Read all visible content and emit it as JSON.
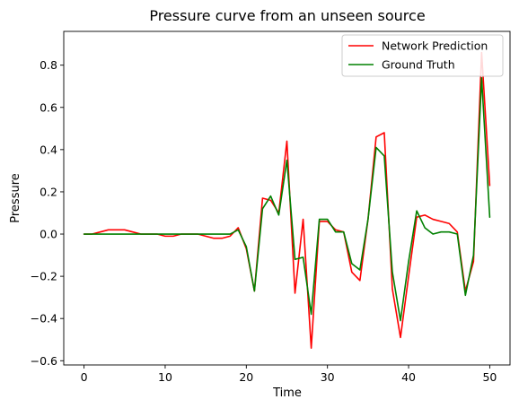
{
  "chart_data": {
    "type": "line",
    "title": "Pressure curve from an unseen source",
    "xlabel": "Time",
    "ylabel": "Pressure",
    "xlim": [
      -2.5,
      52.5
    ],
    "ylim": [
      -0.62,
      0.96
    ],
    "xticks": [
      0,
      10,
      20,
      30,
      40,
      50
    ],
    "yticks": [
      -0.6,
      -0.4,
      -0.2,
      0.0,
      0.2,
      0.4,
      0.6,
      0.8
    ],
    "ytick_labels": [
      "−0.6",
      "−0.4",
      "−0.2",
      "0.0",
      "0.2",
      "0.4",
      "0.6",
      "0.8"
    ],
    "grid": false,
    "legend_position": "top-right",
    "x": [
      0,
      1,
      2,
      3,
      4,
      5,
      6,
      7,
      8,
      9,
      10,
      11,
      12,
      13,
      14,
      15,
      16,
      17,
      18,
      19,
      20,
      21,
      22,
      23,
      24,
      25,
      26,
      27,
      28,
      29,
      30,
      31,
      32,
      33,
      34,
      35,
      36,
      37,
      38,
      39,
      40,
      41,
      42,
      43,
      44,
      45,
      46,
      47,
      48,
      49,
      50
    ],
    "series": [
      {
        "name": "Network Prediction",
        "color": "#ff0000",
        "values": [
          0.0,
          0.0,
          0.01,
          0.02,
          0.02,
          0.02,
          0.01,
          0.0,
          0.0,
          0.0,
          -0.01,
          -0.01,
          0.0,
          0.0,
          0.0,
          -0.01,
          -0.02,
          -0.02,
          -0.01,
          0.03,
          -0.07,
          -0.27,
          0.17,
          0.16,
          0.1,
          0.44,
          -0.28,
          0.07,
          -0.54,
          0.06,
          0.06,
          0.02,
          0.01,
          -0.18,
          -0.22,
          0.07,
          0.46,
          0.48,
          -0.26,
          -0.49,
          -0.2,
          0.08,
          0.09,
          0.07,
          0.06,
          0.05,
          0.01,
          -0.27,
          -0.13,
          0.86,
          0.23
        ]
      },
      {
        "name": "Ground Truth",
        "color": "#008000",
        "values": [
          0.0,
          0.0,
          0.0,
          0.0,
          0.0,
          0.0,
          0.0,
          0.0,
          0.0,
          0.0,
          0.0,
          0.0,
          0.0,
          0.0,
          0.0,
          0.0,
          0.0,
          0.0,
          0.0,
          0.02,
          -0.06,
          -0.27,
          0.12,
          0.18,
          0.09,
          0.35,
          -0.12,
          -0.11,
          -0.38,
          0.07,
          0.07,
          0.01,
          0.01,
          -0.14,
          -0.17,
          0.07,
          0.41,
          0.37,
          -0.18,
          -0.41,
          -0.13,
          0.11,
          0.03,
          0.0,
          0.01,
          0.01,
          0.0,
          -0.29,
          -0.1,
          0.74,
          0.08
        ]
      }
    ]
  }
}
